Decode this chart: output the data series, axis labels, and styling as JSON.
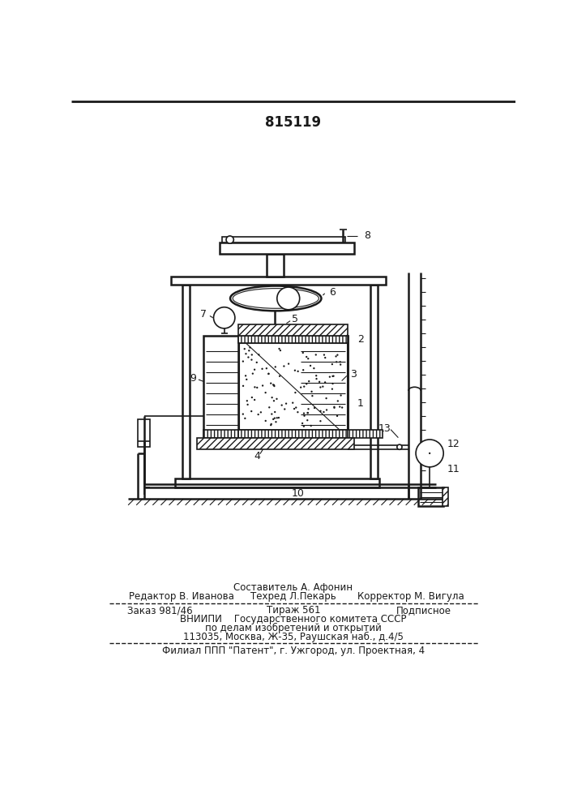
{
  "patent_number": "815119",
  "bg_color": "#ffffff",
  "line_color": "#1a1a1a",
  "footer_texts": {
    "sostavitel": "Составитель А. Афонин",
    "redaktor": "Редактор В. Иванова",
    "tehred": "Техред Л.Пекарь",
    "korrektor": "Корректор М. Вигула",
    "zakaz": "Заказ 981/46",
    "tirazh": "Тираж 561",
    "podpisnoe": "Подписное",
    "vniip1": "ВНИИПИ    Государственного комитета СССР",
    "vniip2": "по делам изобретений и открытий",
    "address": "113035, Москва, Ж-35, Раушская наб., д.4/5",
    "filial": "Филиал ППП \"Патент\", г. Ужгород, ул. Проектная, 4"
  }
}
